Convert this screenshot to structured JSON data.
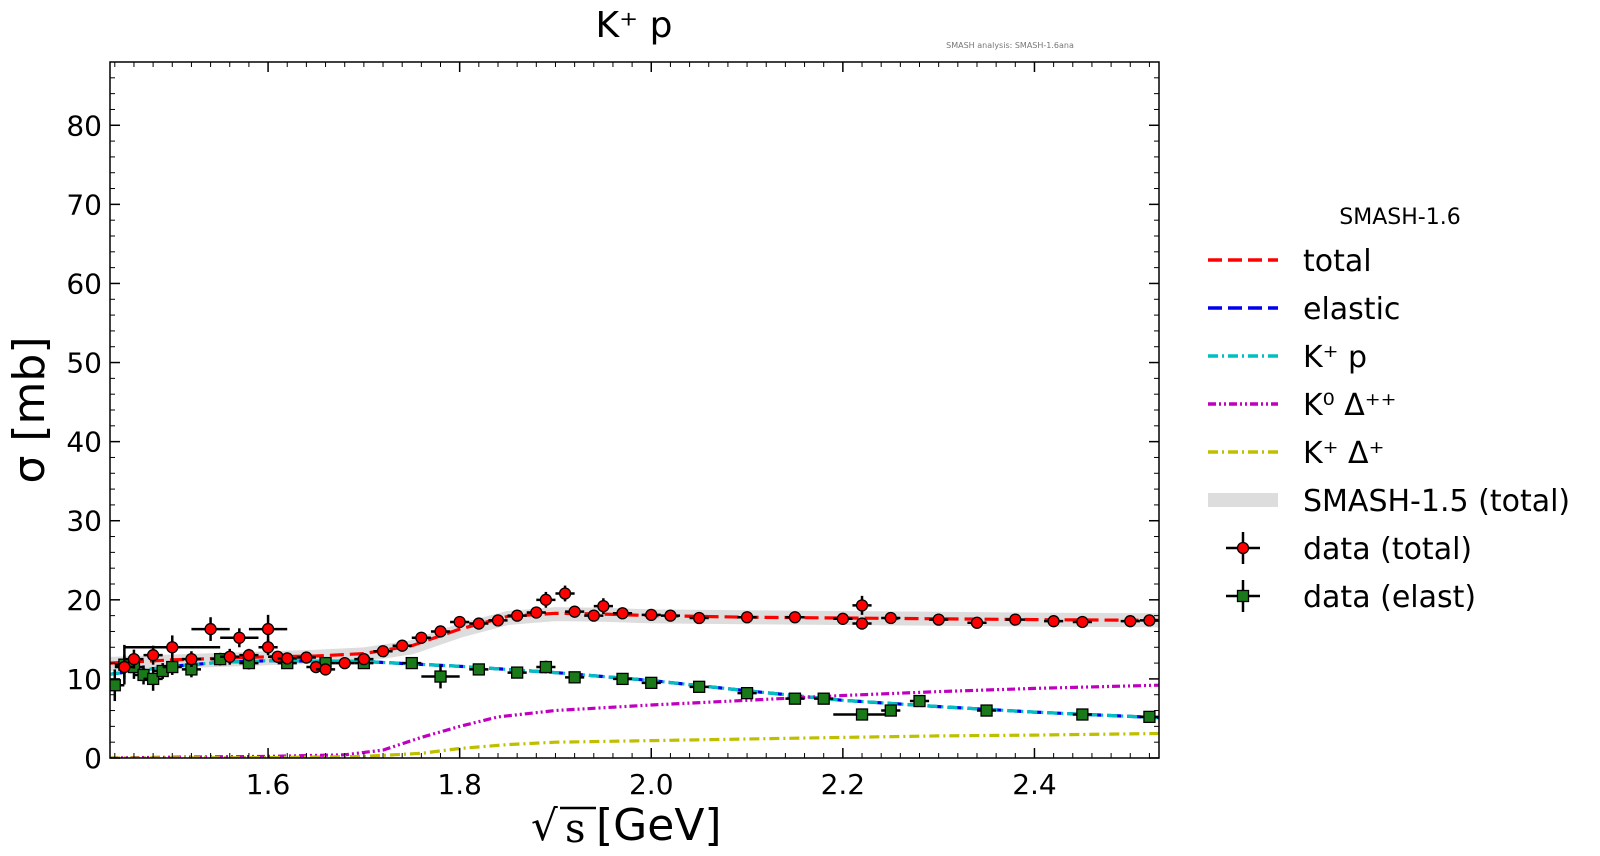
{
  "chart_data": {
    "type": "line",
    "title": "K⁺ p",
    "note": "SMASH analysis: SMASH-1.6ana",
    "xlabel_sqrt": "√",
    "xlabel_s": "s",
    "xlabel_unit": "[GeV]",
    "ylabel": "σ [mb]",
    "xlim": [
      1.435,
      2.53
    ],
    "ylim": [
      0,
      88
    ],
    "xticks": [
      "1.6",
      "1.8",
      "2.0",
      "2.2",
      "2.4"
    ],
    "yticks": [
      "0",
      "10",
      "20",
      "30",
      "40",
      "50",
      "60",
      "70",
      "80"
    ],
    "legend_title": "SMASH-1.6",
    "legend_placement": "right, outside plot",
    "series": [
      {
        "name": "total",
        "color": "#ff0000",
        "style": "dashed",
        "x": [
          1.435,
          1.5,
          1.55,
          1.6,
          1.65,
          1.7,
          1.75,
          1.8,
          1.85,
          1.9,
          1.95,
          2.0,
          2.1,
          2.2,
          2.3,
          2.4,
          2.53
        ],
        "y": [
          12.0,
          12.4,
          12.6,
          12.8,
          12.9,
          13.2,
          14.2,
          16.3,
          17.9,
          18.3,
          18.2,
          18.0,
          17.8,
          17.7,
          17.6,
          17.5,
          17.4
        ]
      },
      {
        "name": "elastic",
        "color": "#0000ee",
        "style": "dashed",
        "x": [
          1.435,
          1.5,
          1.55,
          1.6,
          1.7,
          1.8,
          1.9,
          2.0,
          2.1,
          2.2,
          2.3,
          2.4,
          2.53
        ],
        "y": [
          10.6,
          11.6,
          12.1,
          12.3,
          12.2,
          11.6,
          10.8,
          9.8,
          8.5,
          7.3,
          6.5,
          5.8,
          5.1
        ]
      },
      {
        "name": "K⁺ p",
        "color": "#00bfbf",
        "style": "dashdot",
        "x": [
          1.435,
          1.5,
          1.55,
          1.6,
          1.7,
          1.8,
          1.9,
          2.0,
          2.1,
          2.2,
          2.3,
          2.4,
          2.53
        ],
        "y": [
          10.6,
          11.6,
          12.1,
          12.3,
          12.2,
          11.6,
          10.8,
          9.8,
          8.5,
          7.3,
          6.5,
          5.8,
          5.1
        ]
      },
      {
        "name": "K⁰ Δ⁺⁺",
        "color": "#bf00bf",
        "style": "dashdotdot",
        "x": [
          1.435,
          1.5,
          1.6,
          1.68,
          1.72,
          1.76,
          1.8,
          1.84,
          1.9,
          2.0,
          2.1,
          2.2,
          2.3,
          2.4,
          2.53
        ],
        "y": [
          0.0,
          0.1,
          0.2,
          0.4,
          1.0,
          2.6,
          4.0,
          5.2,
          6.0,
          6.7,
          7.3,
          7.9,
          8.4,
          8.8,
          9.2
        ]
      },
      {
        "name": "K⁺ Δ⁺",
        "color": "#bfbf00",
        "style": "dashdot",
        "x": [
          1.435,
          1.6,
          1.7,
          1.76,
          1.8,
          1.85,
          1.9,
          2.0,
          2.1,
          2.2,
          2.3,
          2.4,
          2.53
        ],
        "y": [
          0.0,
          0.05,
          0.2,
          0.6,
          1.2,
          1.7,
          2.0,
          2.2,
          2.4,
          2.6,
          2.8,
          2.9,
          3.1
        ]
      },
      {
        "name": "SMASH-1.5 (total)",
        "color": "#dddddd",
        "style": "band",
        "x": [
          1.435,
          1.5,
          1.55,
          1.6,
          1.65,
          1.7,
          1.75,
          1.8,
          1.85,
          1.9,
          1.95,
          2.0,
          2.1,
          2.2,
          2.3,
          2.4,
          2.53
        ],
        "y": [
          11.9,
          12.2,
          12.4,
          12.6,
          12.8,
          13.1,
          14.0,
          16.1,
          17.7,
          18.2,
          18.1,
          17.9,
          17.8,
          17.7,
          17.6,
          17.5,
          17.4
        ]
      }
    ],
    "data_total": {
      "name": "data (total)",
      "color": "#ff0000",
      "points": [
        [
          1.45,
          11.5,
          0.01,
          1.5
        ],
        [
          1.46,
          12.5,
          0.01,
          1.2
        ],
        [
          1.48,
          13.0,
          0.01,
          1.2
        ],
        [
          1.5,
          14.0,
          0.05,
          1.5
        ],
        [
          1.52,
          12.5,
          0.01,
          1.0
        ],
        [
          1.54,
          16.3,
          0.02,
          1.5
        ],
        [
          1.56,
          12.8,
          0.01,
          1.0
        ],
        [
          1.57,
          15.2,
          0.02,
          1.2
        ],
        [
          1.58,
          13.0,
          0.01,
          0.8
        ],
        [
          1.6,
          16.3,
          0.02,
          1.8
        ],
        [
          1.6,
          14.0,
          0.01,
          1.0
        ],
        [
          1.61,
          12.8,
          0.01,
          0.6
        ],
        [
          1.62,
          12.6,
          0.01,
          0.6
        ],
        [
          1.64,
          12.7,
          0.01,
          0.6
        ],
        [
          1.65,
          11.5,
          0.01,
          0.6
        ],
        [
          1.66,
          11.2,
          0.01,
          0.6
        ],
        [
          1.68,
          12.0,
          0.01,
          0.6
        ],
        [
          1.7,
          12.5,
          0.01,
          0.6
        ],
        [
          1.72,
          13.5,
          0.01,
          0.6
        ],
        [
          1.74,
          14.2,
          0.01,
          0.6
        ],
        [
          1.76,
          15.2,
          0.01,
          0.6
        ],
        [
          1.78,
          16.0,
          0.01,
          0.6
        ],
        [
          1.8,
          17.2,
          0.01,
          0.6
        ],
        [
          1.82,
          17.0,
          0.01,
          0.6
        ],
        [
          1.84,
          17.4,
          0.01,
          0.6
        ],
        [
          1.86,
          18.0,
          0.01,
          0.6
        ],
        [
          1.88,
          18.4,
          0.01,
          0.6
        ],
        [
          1.89,
          20.0,
          0.01,
          1.0
        ],
        [
          1.91,
          20.8,
          0.01,
          1.0
        ],
        [
          1.92,
          18.5,
          0.01,
          0.6
        ],
        [
          1.94,
          18.0,
          0.01,
          0.6
        ],
        [
          1.95,
          19.2,
          0.01,
          1.0
        ],
        [
          1.97,
          18.3,
          0.01,
          0.6
        ],
        [
          2.0,
          18.1,
          0.01,
          0.6
        ],
        [
          2.02,
          18.0,
          0.01,
          0.6
        ],
        [
          2.05,
          17.7,
          0.01,
          0.5
        ],
        [
          2.1,
          17.8,
          0.01,
          0.5
        ],
        [
          2.15,
          17.8,
          0.01,
          0.5
        ],
        [
          2.2,
          17.6,
          0.01,
          0.5
        ],
        [
          2.22,
          19.3,
          0.01,
          1.2
        ],
        [
          2.22,
          17.0,
          0.01,
          0.5
        ],
        [
          2.25,
          17.7,
          0.01,
          0.5
        ],
        [
          2.3,
          17.5,
          0.01,
          0.5
        ],
        [
          2.34,
          17.1,
          0.01,
          0.5
        ],
        [
          2.38,
          17.5,
          0.01,
          0.5
        ],
        [
          2.42,
          17.3,
          0.01,
          0.5
        ],
        [
          2.45,
          17.2,
          0.01,
          0.5
        ],
        [
          2.5,
          17.3,
          0.01,
          0.5
        ],
        [
          2.52,
          17.4,
          0.01,
          0.5
        ]
      ]
    },
    "data_elast": {
      "name": "data (elast)",
      "color": "#1a7a1a",
      "points": [
        [
          1.44,
          9.2,
          0.01,
          2.0
        ],
        [
          1.45,
          11.8,
          0.01,
          2.5
        ],
        [
          1.46,
          11.5,
          0.01,
          1.5
        ],
        [
          1.47,
          10.5,
          0.01,
          1.2
        ],
        [
          1.48,
          10.0,
          0.01,
          1.5
        ],
        [
          1.49,
          11.0,
          0.01,
          1.0
        ],
        [
          1.5,
          11.5,
          0.01,
          1.0
        ],
        [
          1.52,
          11.2,
          0.01,
          1.0
        ],
        [
          1.55,
          12.5,
          0.01,
          0.8
        ],
        [
          1.58,
          12.0,
          0.01,
          0.8
        ],
        [
          1.62,
          12.0,
          0.01,
          0.6
        ],
        [
          1.66,
          12.0,
          0.01,
          0.6
        ],
        [
          1.7,
          12.0,
          0.01,
          0.6
        ],
        [
          1.75,
          12.0,
          0.01,
          0.6
        ],
        [
          1.78,
          10.3,
          0.02,
          1.5
        ],
        [
          1.82,
          11.2,
          0.01,
          0.5
        ],
        [
          1.86,
          10.8,
          0.01,
          0.5
        ],
        [
          1.89,
          11.5,
          0.01,
          0.8
        ],
        [
          1.92,
          10.2,
          0.01,
          0.5
        ],
        [
          1.97,
          10.0,
          0.01,
          0.5
        ],
        [
          2.0,
          9.5,
          0.01,
          0.5
        ],
        [
          2.05,
          9.0,
          0.01,
          0.5
        ],
        [
          2.1,
          8.2,
          0.01,
          0.5
        ],
        [
          2.15,
          7.5,
          0.01,
          0.5
        ],
        [
          2.18,
          7.5,
          0.01,
          0.5
        ],
        [
          2.22,
          5.5,
          0.03,
          0.6
        ],
        [
          2.25,
          6.0,
          0.01,
          0.5
        ],
        [
          2.28,
          7.2,
          0.01,
          0.6
        ],
        [
          2.35,
          6.0,
          0.01,
          0.5
        ],
        [
          2.45,
          5.5,
          0.01,
          0.5
        ],
        [
          2.52,
          5.2,
          0.01,
          0.5
        ]
      ]
    }
  }
}
